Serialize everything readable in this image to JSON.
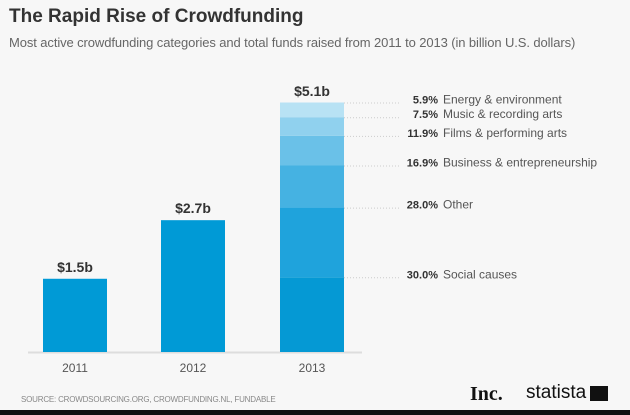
{
  "chart_data": {
    "type": "bar",
    "title": "The Rapid Rise of Crowdfunding",
    "subtitle": "Most active crowdfunding categories and total funds raised from 2011 to 2013 (in billion U.S. dollars)",
    "categories": [
      "2011",
      "2012",
      "2013"
    ],
    "values": [
      1.5,
      2.7,
      5.1
    ],
    "data_labels": [
      "$1.5b",
      "$2.7b",
      "$5.1b"
    ],
    "ylim": [
      0,
      5.1
    ],
    "grid": false,
    "breakdown_2013": [
      {
        "name": "Social causes",
        "share": 30.0,
        "label": "30.0%",
        "color": "#0599d4"
      },
      {
        "name": "Other",
        "share": 28.0,
        "label": "28.0%",
        "color": "#1fa3dc"
      },
      {
        "name": "Business & entrepreneurship",
        "share": 16.9,
        "label": "16.9%",
        "color": "#45b2e2"
      },
      {
        "name": "Films & performing arts",
        "share": 11.9,
        "label": "11.9%",
        "color": "#6ac1e8"
      },
      {
        "name": "Music & recording arts",
        "share": 7.5,
        "label": "7.5%",
        "color": "#90d1ee"
      },
      {
        "name": "Energy & environment",
        "share": 5.9,
        "label": "5.9%",
        "color": "#b8e2f4"
      }
    ],
    "bar_color": "#009ad6"
  },
  "source": "SOURCE: CROWDSOURCING.ORG, CROWDFUNDING.NL, FUNDABLE",
  "logos": {
    "inc": "Inc.",
    "statista": "statista"
  }
}
